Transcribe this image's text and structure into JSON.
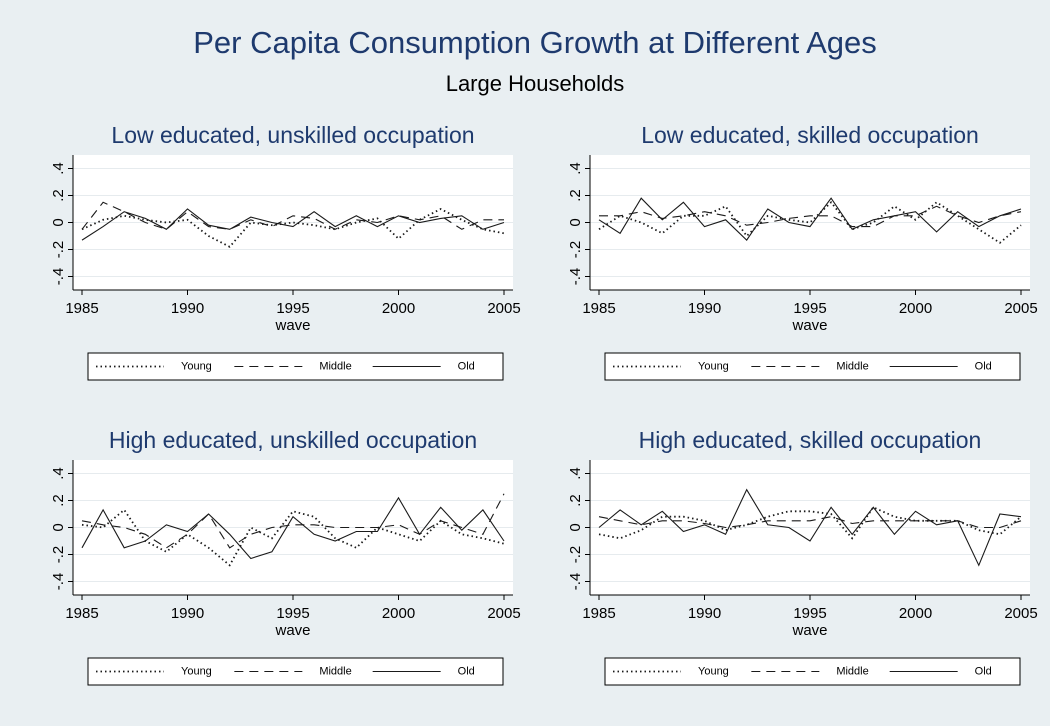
{
  "title": "Per Capita Consumption Growth at Different Ages",
  "subtitle": "Large Households",
  "chart_data": [
    {
      "type": "line",
      "title": "Low educated, unskilled occupation",
      "x_label": "wave",
      "x": [
        1985,
        1986,
        1987,
        1988,
        1989,
        1990,
        1991,
        1992,
        1993,
        1994,
        1995,
        1996,
        1997,
        1998,
        1999,
        2000,
        2001,
        2002,
        2003,
        2004,
        2005
      ],
      "xlim": [
        1985,
        2005
      ],
      "xticks": [
        1985,
        1990,
        1995,
        2000,
        2005
      ],
      "ylim": [
        -0.5,
        0.5
      ],
      "yticks": [
        {
          "value": -0.4,
          "label": "-.4"
        },
        {
          "value": -0.2,
          "label": "-.2"
        },
        0,
        {
          "value": 0.2,
          "label": ".2"
        },
        {
          "value": 0.4,
          "label": ".4"
        }
      ],
      "grid": true,
      "series": [
        {
          "name": "Young",
          "color": "#1a1a1a",
          "linestyle": "dotted",
          "values": [
            -0.05,
            0.02,
            0.05,
            0.02,
            0.0,
            0.02,
            -0.1,
            -0.18,
            0.0,
            -0.02,
            0.0,
            -0.02,
            -0.05,
            0.0,
            0.03,
            -0.12,
            0.02,
            0.1,
            0.02,
            -0.05,
            -0.08
          ]
        },
        {
          "name": "Middle",
          "color": "#1a1a1a",
          "linestyle": "dashed",
          "values": [
            -0.05,
            0.15,
            0.08,
            0.0,
            -0.05,
            0.08,
            -0.03,
            -0.05,
            0.02,
            -0.03,
            0.05,
            0.03,
            -0.05,
            0.02,
            0.0,
            0.05,
            0.02,
            0.05,
            -0.05,
            0.02,
            0.02
          ]
        },
        {
          "name": "Old",
          "color": "#1a1a1a",
          "linestyle": "solid",
          "values": [
            -0.13,
            -0.03,
            0.08,
            0.03,
            -0.05,
            0.1,
            -0.02,
            -0.05,
            0.04,
            0.0,
            -0.03,
            0.08,
            -0.03,
            0.05,
            -0.03,
            0.05,
            0.0,
            0.03,
            0.05,
            -0.05,
            0.0
          ]
        }
      ]
    },
    {
      "type": "line",
      "title": "Low educated, skilled occupation",
      "x_label": "wave",
      "x": [
        1985,
        1986,
        1987,
        1988,
        1989,
        1990,
        1991,
        1992,
        1993,
        1994,
        1995,
        1996,
        1997,
        1998,
        1999,
        2000,
        2001,
        2002,
        2003,
        2004,
        2005
      ],
      "xlim": [
        1985,
        2005
      ],
      "xticks": [
        1985,
        1990,
        1995,
        2000,
        2005
      ],
      "ylim": [
        -0.5,
        0.5
      ],
      "yticks": [
        {
          "value": -0.4,
          "label": "-.4"
        },
        {
          "value": -0.2,
          "label": "-.2"
        },
        0,
        {
          "value": 0.2,
          "label": ".2"
        },
        {
          "value": 0.4,
          "label": ".4"
        }
      ],
      "grid": true,
      "series": [
        {
          "name": "Young",
          "color": "#1a1a1a",
          "linestyle": "dotted",
          "values": [
            -0.05,
            0.05,
            0.0,
            -0.08,
            0.05,
            0.05,
            0.12,
            -0.1,
            0.05,
            0.02,
            0.0,
            0.15,
            -0.05,
            0.0,
            0.12,
            0.02,
            0.15,
            0.05,
            -0.05,
            -0.15,
            -0.02
          ]
        },
        {
          "name": "Middle",
          "color": "#1a1a1a",
          "linestyle": "dashed",
          "values": [
            0.05,
            0.05,
            0.08,
            0.03,
            0.05,
            0.08,
            0.05,
            -0.02,
            0.0,
            0.03,
            0.05,
            0.05,
            -0.03,
            -0.03,
            0.05,
            0.05,
            0.12,
            0.05,
            0.0,
            0.05,
            0.08
          ]
        },
        {
          "name": "Old",
          "color": "#1a1a1a",
          "linestyle": "solid",
          "values": [
            0.02,
            -0.08,
            0.18,
            0.02,
            0.15,
            -0.03,
            0.02,
            -0.13,
            0.1,
            0.0,
            -0.03,
            0.18,
            -0.05,
            0.02,
            0.05,
            0.08,
            -0.07,
            0.08,
            -0.03,
            0.05,
            0.1
          ]
        }
      ]
    },
    {
      "type": "line",
      "title": "High educated, unskilled occupation",
      "x_label": "wave",
      "x": [
        1985,
        1986,
        1987,
        1988,
        1989,
        1990,
        1991,
        1992,
        1993,
        1994,
        1995,
        1996,
        1997,
        1998,
        1999,
        2000,
        2001,
        2002,
        2003,
        2004,
        2005
      ],
      "xlim": [
        1985,
        2005
      ],
      "xticks": [
        1985,
        1990,
        1995,
        2000,
        2005
      ],
      "ylim": [
        -0.5,
        0.5
      ],
      "yticks": [
        {
          "value": -0.4,
          "label": "-.4"
        },
        {
          "value": -0.2,
          "label": "-.2"
        },
        0,
        {
          "value": 0.2,
          "label": ".2"
        },
        {
          "value": 0.4,
          "label": ".4"
        }
      ],
      "grid": true,
      "series": [
        {
          "name": "Young",
          "color": "#1a1a1a",
          "linestyle": "dotted",
          "values": [
            0.02,
            0.0,
            0.13,
            -0.1,
            -0.18,
            -0.05,
            -0.15,
            -0.28,
            0.0,
            -0.08,
            0.12,
            0.08,
            -0.08,
            -0.15,
            0.0,
            -0.05,
            -0.1,
            0.05,
            -0.05,
            -0.08,
            -0.12
          ]
        },
        {
          "name": "Middle",
          "color": "#1a1a1a",
          "linestyle": "dashed",
          "values": [
            0.05,
            0.02,
            0.0,
            -0.05,
            -0.15,
            -0.05,
            0.1,
            -0.15,
            -0.05,
            0.0,
            0.02,
            0.02,
            0.0,
            0.0,
            0.0,
            0.02,
            -0.05,
            0.05,
            0.0,
            -0.05,
            0.25
          ]
        },
        {
          "name": "Old",
          "color": "#1a1a1a",
          "linestyle": "solid",
          "values": [
            -0.15,
            0.13,
            -0.15,
            -0.1,
            0.02,
            -0.03,
            0.1,
            -0.05,
            -0.23,
            -0.18,
            0.08,
            -0.05,
            -0.1,
            -0.03,
            -0.03,
            0.22,
            -0.05,
            0.15,
            -0.02,
            0.13,
            -0.1
          ]
        }
      ]
    },
    {
      "type": "line",
      "title": "High educated, skilled occupation",
      "x_label": "wave",
      "x": [
        1985,
        1986,
        1987,
        1988,
        1989,
        1990,
        1991,
        1992,
        1993,
        1994,
        1995,
        1996,
        1997,
        1998,
        1999,
        2000,
        2001,
        2002,
        2003,
        2004,
        2005
      ],
      "xlim": [
        1985,
        2005
      ],
      "xticks": [
        1985,
        1990,
        1995,
        2000,
        2005
      ],
      "ylim": [
        -0.5,
        0.5
      ],
      "yticks": [
        {
          "value": -0.4,
          "label": "-.4"
        },
        {
          "value": -0.2,
          "label": "-.2"
        },
        0,
        {
          "value": 0.2,
          "label": ".2"
        },
        {
          "value": 0.4,
          "label": ".4"
        }
      ],
      "grid": true,
      "series": [
        {
          "name": "Young",
          "color": "#1a1a1a",
          "linestyle": "dotted",
          "values": [
            -0.05,
            -0.08,
            -0.02,
            0.08,
            0.08,
            0.05,
            -0.02,
            0.02,
            0.08,
            0.12,
            0.12,
            0.1,
            -0.08,
            0.15,
            0.08,
            0.05,
            0.05,
            0.05,
            -0.02,
            -0.05,
            0.08
          ]
        },
        {
          "name": "Middle",
          "color": "#1a1a1a",
          "linestyle": "dashed",
          "values": [
            0.08,
            0.05,
            0.02,
            0.05,
            0.05,
            0.03,
            0.0,
            0.02,
            0.05,
            0.05,
            0.05,
            0.08,
            0.03,
            0.05,
            0.05,
            0.05,
            0.05,
            0.05,
            0.0,
            0.0,
            0.05
          ]
        },
        {
          "name": "Old",
          "color": "#1a1a1a",
          "linestyle": "solid",
          "values": [
            0.0,
            0.13,
            0.02,
            0.12,
            -0.03,
            0.02,
            -0.05,
            0.28,
            0.02,
            0.0,
            -0.1,
            0.15,
            -0.05,
            0.15,
            -0.05,
            0.12,
            0.02,
            0.05,
            -0.28,
            0.1,
            0.08
          ]
        }
      ]
    }
  ]
}
